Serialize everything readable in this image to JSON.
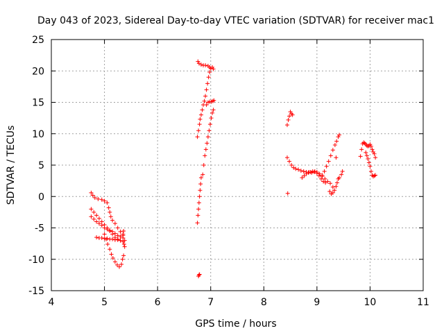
{
  "chart_data": {
    "type": "scatter",
    "title": "Day 043 of 2023, Sidereal Day-to-day VTEC variation (SDTVAR) for receiver mac1",
    "xlabel": "GPS time / hours",
    "ylabel": "SDTVAR / TECUs",
    "xlim": [
      4,
      11
    ],
    "ylim": [
      -15,
      25
    ],
    "xticks": [
      "4",
      "5",
      "6",
      "7",
      "8",
      "9",
      "10",
      "11"
    ],
    "yticks": [
      "-15",
      "-10",
      "-5",
      "0",
      "5",
      "10",
      "15",
      "20",
      "25"
    ],
    "grid": true,
    "marker": "plus",
    "color": "#ff0000",
    "segments": [
      {
        "name": "cluster-1-upper",
        "points": [
          [
            4.75,
            0.6
          ],
          [
            4.78,
            0.2
          ],
          [
            4.82,
            -0.2
          ],
          [
            4.88,
            -0.4
          ],
          [
            4.95,
            -0.5
          ],
          [
            5.0,
            -0.7
          ],
          [
            5.05,
            -1.0
          ],
          [
            5.08,
            -1.8
          ],
          [
            5.1,
            -2.5
          ],
          [
            5.12,
            -3.2
          ],
          [
            5.15,
            -3.8
          ],
          [
            5.2,
            -4.3
          ],
          [
            5.25,
            -5.0
          ],
          [
            5.3,
            -5.6
          ],
          [
            5.35,
            -6.2
          ],
          [
            5.38,
            -7.0
          ]
        ]
      },
      {
        "name": "cluster-1-diagonal",
        "points": [
          [
            4.75,
            -2.0
          ],
          [
            4.8,
            -2.5
          ],
          [
            4.85,
            -3.0
          ],
          [
            4.9,
            -3.5
          ],
          [
            4.95,
            -4.0
          ],
          [
            5.0,
            -4.5
          ],
          [
            5.05,
            -5.0
          ],
          [
            5.1,
            -5.5
          ],
          [
            5.15,
            -6.0
          ],
          [
            5.2,
            -6.5
          ],
          [
            5.25,
            -6.8
          ],
          [
            5.3,
            -7.0
          ],
          [
            5.35,
            -6.0
          ],
          [
            5.36,
            -5.5
          ]
        ]
      },
      {
        "name": "cluster-1-band",
        "points": [
          [
            4.75,
            -3.2
          ],
          [
            4.8,
            -3.6
          ],
          [
            4.85,
            -4.0
          ],
          [
            4.9,
            -4.3
          ],
          [
            4.95,
            -4.6
          ],
          [
            5.0,
            -5.0
          ],
          [
            5.05,
            -5.2
          ],
          [
            5.1,
            -5.4
          ],
          [
            5.15,
            -5.6
          ],
          [
            5.2,
            -5.9
          ],
          [
            5.25,
            -6.2
          ],
          [
            5.3,
            -6.4
          ],
          [
            5.35,
            -6.6
          ]
        ]
      },
      {
        "name": "cluster-1-flat",
        "points": [
          [
            4.85,
            -6.5
          ],
          [
            4.9,
            -6.6
          ],
          [
            4.95,
            -6.6
          ],
          [
            5.0,
            -6.7
          ],
          [
            5.05,
            -6.7
          ],
          [
            5.1,
            -6.8
          ],
          [
            5.15,
            -6.8
          ],
          [
            5.2,
            -6.9
          ],
          [
            5.25,
            -6.9
          ],
          [
            5.3,
            -7.0
          ],
          [
            5.35,
            -7.2
          ],
          [
            5.37,
            -7.6
          ],
          [
            5.38,
            -8.0
          ]
        ]
      },
      {
        "name": "cluster-1-lower",
        "points": [
          [
            5.0,
            -6.0
          ],
          [
            5.03,
            -6.8
          ],
          [
            5.06,
            -7.6
          ],
          [
            5.1,
            -8.4
          ],
          [
            5.13,
            -9.2
          ],
          [
            5.16,
            -9.8
          ],
          [
            5.2,
            -10.4
          ],
          [
            5.24,
            -10.9
          ],
          [
            5.28,
            -11.2
          ],
          [
            5.32,
            -10.8
          ],
          [
            5.34,
            -10.0
          ],
          [
            5.36,
            -9.4
          ]
        ]
      },
      {
        "name": "cluster-2-low-stub",
        "points": [
          [
            6.77,
            -12.7
          ],
          [
            6.78,
            -12.5
          ],
          [
            6.79,
            -12.4
          ]
        ]
      },
      {
        "name": "cluster-2-left-rise",
        "points": [
          [
            6.75,
            -4.2
          ],
          [
            6.76,
            -3.0
          ],
          [
            6.77,
            -2.0
          ],
          [
            6.78,
            -1.0
          ],
          [
            6.79,
            0.0
          ],
          [
            6.8,
            1.0
          ],
          [
            6.81,
            2.0
          ],
          [
            6.82,
            3.0
          ]
        ]
      },
      {
        "name": "cluster-2-left-upper",
        "points": [
          [
            6.75,
            9.5
          ],
          [
            6.77,
            10.5
          ],
          [
            6.79,
            11.5
          ],
          [
            6.8,
            12.3
          ],
          [
            6.82,
            13.0
          ],
          [
            6.84,
            13.8
          ],
          [
            6.86,
            14.6
          ],
          [
            6.88,
            15.2
          ],
          [
            6.9,
            16.0
          ],
          [
            6.92,
            17.0
          ],
          [
            6.94,
            18.0
          ],
          [
            6.96,
            19.0
          ],
          [
            6.98,
            19.8
          ],
          [
            7.0,
            20.4
          ],
          [
            7.03,
            20.6
          ],
          [
            7.05,
            20.3
          ]
        ]
      },
      {
        "name": "cluster-2-top",
        "points": [
          [
            6.76,
            21.5
          ],
          [
            6.78,
            21.2
          ],
          [
            6.82,
            21.0
          ],
          [
            6.86,
            20.9
          ],
          [
            6.9,
            20.9
          ],
          [
            6.95,
            20.8
          ],
          [
            6.98,
            20.6
          ]
        ]
      },
      {
        "name": "cluster-2-right-rise",
        "points": [
          [
            6.85,
            3.5
          ],
          [
            6.87,
            5.0
          ],
          [
            6.89,
            6.5
          ],
          [
            6.91,
            7.5
          ],
          [
            6.93,
            8.5
          ],
          [
            6.95,
            9.5
          ],
          [
            6.97,
            10.5
          ],
          [
            6.99,
            11.5
          ],
          [
            7.01,
            12.5
          ],
          [
            7.03,
            13.3
          ],
          [
            7.05,
            13.8
          ]
        ]
      },
      {
        "name": "cluster-2-right-top",
        "points": [
          [
            6.92,
            14.6
          ],
          [
            6.95,
            15.0
          ],
          [
            6.98,
            15.1
          ],
          [
            7.01,
            15.1
          ],
          [
            7.04,
            15.2
          ],
          [
            7.06,
            15.3
          ]
        ]
      },
      {
        "name": "cluster-3-stubs",
        "points": [
          [
            8.45,
            0.5
          ],
          [
            8.44,
            11.4
          ],
          [
            8.46,
            12.2
          ],
          [
            8.48,
            12.8
          ],
          [
            8.5,
            13.5
          ],
          [
            8.52,
            13.2
          ],
          [
            8.54,
            13.0
          ]
        ]
      },
      {
        "name": "cluster-3-descent",
        "points": [
          [
            8.44,
            6.2
          ],
          [
            8.48,
            5.6
          ],
          [
            8.52,
            5.0
          ],
          [
            8.56,
            4.6
          ],
          [
            8.6,
            4.4
          ],
          [
            8.65,
            4.3
          ],
          [
            8.7,
            4.1
          ],
          [
            8.75,
            4.0
          ],
          [
            8.8,
            3.9
          ],
          [
            8.85,
            3.9
          ],
          [
            8.9,
            3.8
          ],
          [
            8.95,
            3.9
          ],
          [
            9.0,
            3.9
          ],
          [
            9.05,
            3.6
          ],
          [
            9.1,
            3.2
          ],
          [
            9.15,
            2.8
          ],
          [
            9.2,
            2.4
          ],
          [
            9.25,
            2.1
          ],
          [
            9.3,
            1.5
          ]
        ]
      },
      {
        "name": "cluster-3-hump",
        "points": [
          [
            8.72,
            3.0
          ],
          [
            8.76,
            3.3
          ],
          [
            8.8,
            3.6
          ],
          [
            8.84,
            3.8
          ],
          [
            8.88,
            3.9
          ],
          [
            8.92,
            4.0
          ],
          [
            8.96,
            4.0
          ],
          [
            9.0,
            3.7
          ],
          [
            9.04,
            3.3
          ],
          [
            9.08,
            2.8
          ],
          [
            9.12,
            2.4
          ],
          [
            9.16,
            2.2
          ]
        ]
      },
      {
        "name": "cluster-3-right-rise",
        "points": [
          [
            9.1,
            3.4
          ],
          [
            9.14,
            4.0
          ],
          [
            9.18,
            4.8
          ],
          [
            9.22,
            5.6
          ],
          [
            9.26,
            6.5
          ],
          [
            9.3,
            7.4
          ],
          [
            9.34,
            8.2
          ],
          [
            9.37,
            8.8
          ],
          [
            9.4,
            9.5
          ],
          [
            9.42,
            9.8
          ]
        ]
      },
      {
        "name": "cluster-3-right-low",
        "points": [
          [
            9.24,
            0.8
          ],
          [
            9.27,
            0.4
          ],
          [
            9.3,
            0.6
          ],
          [
            9.33,
            1.0
          ],
          [
            9.36,
            1.6
          ],
          [
            9.38,
            2.2
          ],
          [
            9.4,
            2.8
          ],
          [
            9.42,
            3.0
          ],
          [
            9.46,
            3.5
          ],
          [
            9.48,
            4.0
          ],
          [
            9.36,
            6.2
          ]
        ]
      },
      {
        "name": "cluster-4-a",
        "points": [
          [
            9.82,
            6.4
          ],
          [
            9.84,
            7.5
          ],
          [
            9.86,
            8.4
          ],
          [
            9.88,
            8.6
          ],
          [
            9.9,
            8.5
          ],
          [
            9.92,
            8.3
          ],
          [
            9.94,
            8.1
          ],
          [
            9.96,
            8.0
          ],
          [
            9.98,
            8.1
          ],
          [
            10.0,
            8.3
          ],
          [
            10.02,
            8.0
          ],
          [
            10.04,
            7.5
          ],
          [
            10.06,
            7.1
          ],
          [
            10.08,
            6.8
          ],
          [
            10.1,
            6.2
          ]
        ]
      },
      {
        "name": "cluster-4-b",
        "points": [
          [
            9.92,
            7.0
          ],
          [
            9.94,
            6.5
          ],
          [
            9.96,
            6.0
          ],
          [
            9.98,
            5.4
          ],
          [
            10.0,
            4.8
          ],
          [
            10.02,
            4.0
          ],
          [
            10.04,
            3.4
          ],
          [
            10.06,
            3.2
          ],
          [
            10.08,
            3.3
          ],
          [
            10.1,
            3.4
          ]
        ]
      }
    ]
  }
}
